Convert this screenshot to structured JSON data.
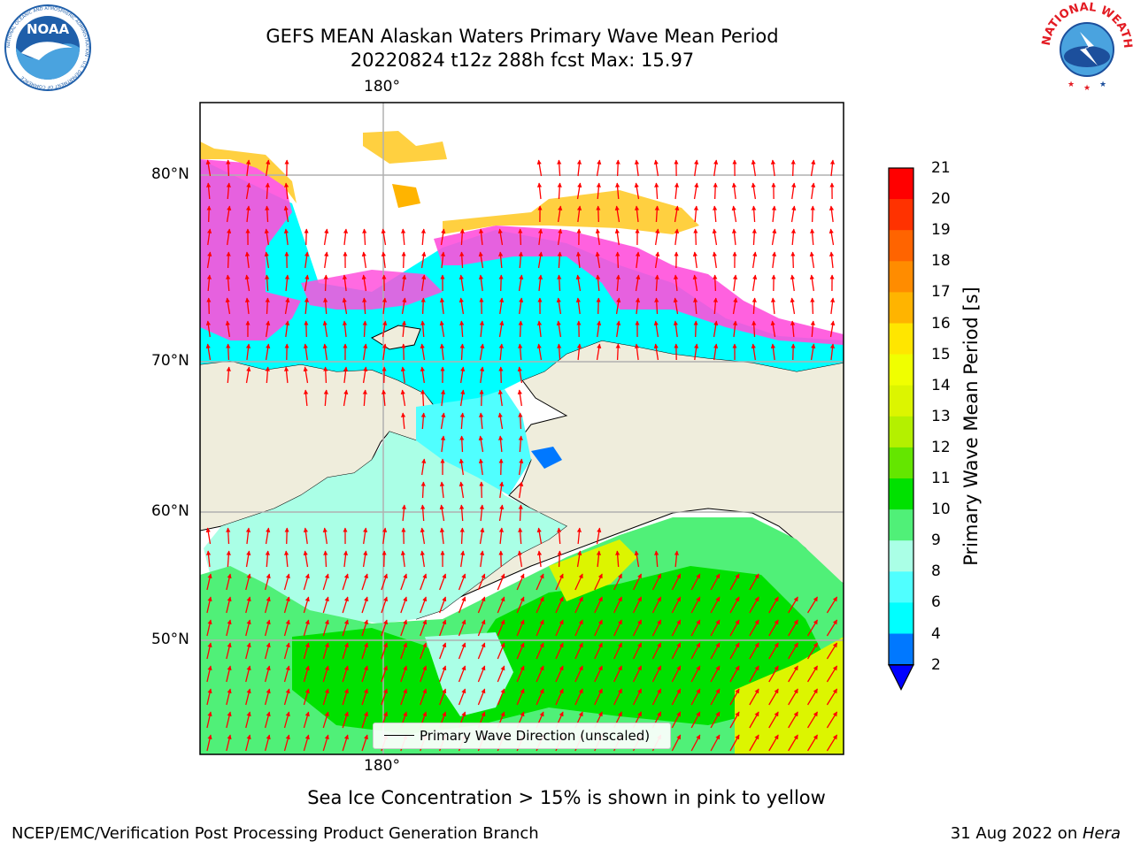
{
  "title": {
    "line1": "GEFS MEAN Alaskan Waters Primary Wave Mean Period",
    "line2": "20220824 t12z 288h fcst   Max: 15.97"
  },
  "logos": {
    "left": {
      "name": "noaa-logo",
      "text": "NOAA",
      "ring_text": "NATIONAL OCEANIC AND ATMOSPHERIC ADMINISTRATION · U.S. DEPARTMENT OF COMMERCE",
      "colors": [
        "#1f5faa",
        "#ffffff"
      ]
    },
    "right": {
      "name": "nws-logo",
      "ring_text": "NATIONAL WEATHER SERVICE",
      "colors": [
        "#e31b23",
        "#1c4f9c"
      ]
    }
  },
  "map": {
    "meridian_label_top": "180°",
    "meridian_label_bottom": "180°",
    "lat_labels": [
      "80°N",
      "70°N",
      "60°N",
      "50°N"
    ],
    "colors": {
      "land": "#efeddc",
      "ocean": "#ffffff",
      "grid": "#b0b0b0",
      "arrow": "#ff0000",
      "coast": "#000000"
    },
    "legend": "Primary Wave Direction (unscaled)"
  },
  "colorbar": {
    "label": "Primary Wave Mean Period [s]",
    "ticks": [
      "21",
      "20",
      "19",
      "18",
      "17",
      "16",
      "15",
      "14",
      "13",
      "12",
      "11",
      "10",
      "9",
      "8",
      "6",
      "4",
      "2"
    ],
    "colors": [
      "#ff0000",
      "#ff3200",
      "#ff6400",
      "#ff8c00",
      "#ffb400",
      "#ffe600",
      "#f0ff00",
      "#dcf500",
      "#b4f000",
      "#64e600",
      "#00e100",
      "#50f078",
      "#aaffe6",
      "#50ffff",
      "#00ffff",
      "#0078ff",
      "#0000ff"
    ]
  },
  "ice_note": "Sea Ice Concentration > 15% is shown in pink to yellow",
  "footer": {
    "left": "NCEP/EMC/Verification Post Processing Product Generation Branch",
    "right_prefix": "31 Aug 2022 on ",
    "right_host": "Hera"
  }
}
